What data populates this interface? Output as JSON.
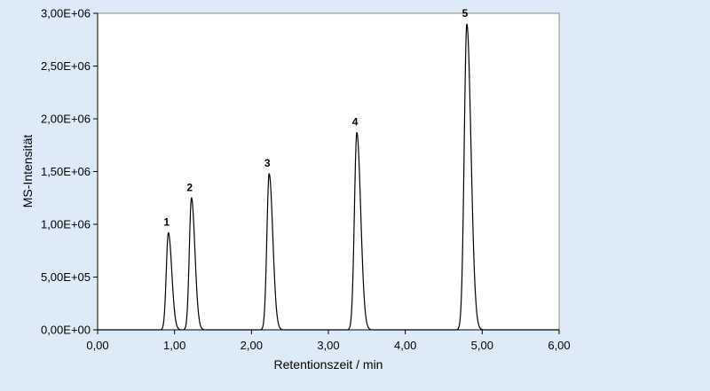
{
  "chart_data": {
    "type": "line",
    "xlabel": "Retentionszeit / min",
    "ylabel": "MS-Intensität",
    "xlim": [
      0,
      6
    ],
    "ylim": [
      0,
      3000000
    ],
    "x_ticks": [
      "0,00",
      "1,00",
      "2,00",
      "3,00",
      "4,00",
      "5,00",
      "6,00"
    ],
    "y_ticks": [
      "0,00E+00",
      "5,00E+05",
      "1,00E+06",
      "1,50E+06",
      "2,00E+06",
      "2,50E+06",
      "3,00E+06"
    ],
    "grid": false,
    "peaks": [
      {
        "label": "1",
        "retention_time": 0.92,
        "intensity": 920000
      },
      {
        "label": "2",
        "retention_time": 1.22,
        "intensity": 1250000
      },
      {
        "label": "3",
        "retention_time": 2.23,
        "intensity": 1480000
      },
      {
        "label": "4",
        "retention_time": 3.37,
        "intensity": 1870000
      },
      {
        "label": "5",
        "retention_time": 4.8,
        "intensity": 2900000
      }
    ]
  }
}
